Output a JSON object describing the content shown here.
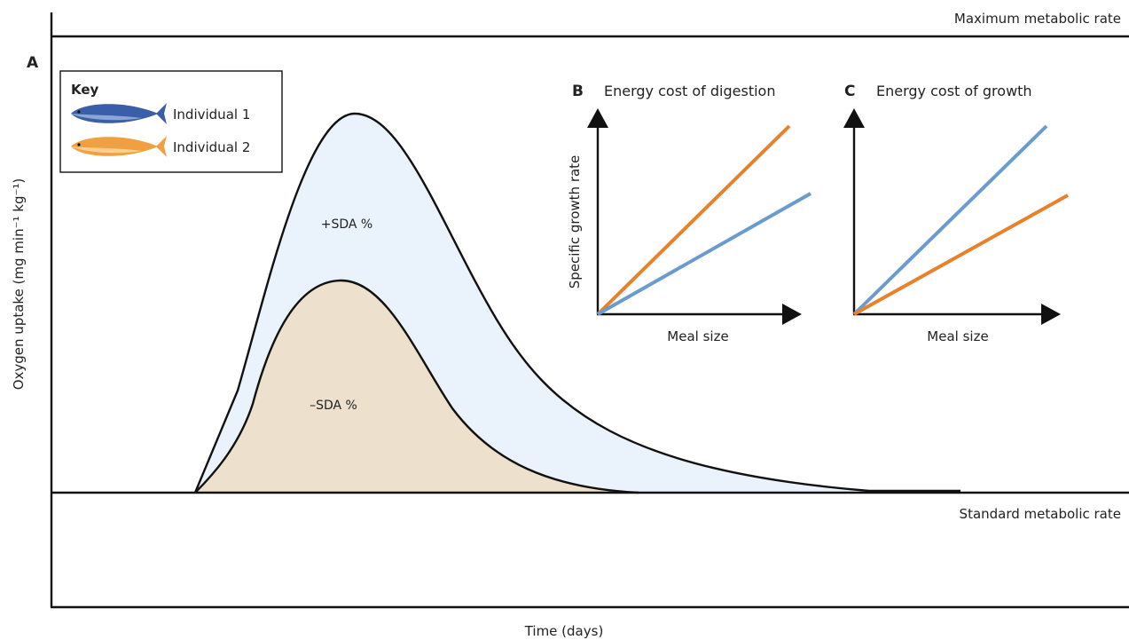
{
  "panel_a": {
    "letter": "A",
    "y_axis_label": "Oxygen uptake (mg  min⁻¹ kg⁻¹)",
    "x_axis_label": "Time (days)",
    "max_label": "Maximum metabolic rate",
    "std_label": "Standard metabolic rate",
    "plus_sda": "+SDA %",
    "minus_sda": "–SDA %",
    "fill_colors": {
      "plus": "#eaf2fb",
      "minus": "#ede0cc"
    }
  },
  "key": {
    "title": "Key",
    "items": [
      {
        "label": "Individual 1",
        "icon": "blue-fish-icon",
        "color": "#3a5ea8"
      },
      {
        "label": "Individual 2",
        "icon": "orange-fish-icon",
        "color": "#f0a040"
      }
    ]
  },
  "panel_b": {
    "letter": "B",
    "title": "Energy cost of digestion",
    "x_label": "Meal size",
    "y_label": "Specific growth rate"
  },
  "panel_c": {
    "letter": "C",
    "title": "Energy cost of growth",
    "x_label": "Meal size"
  },
  "line_colors": {
    "blue": "#6a9bd0",
    "orange": "#e8822a"
  }
}
